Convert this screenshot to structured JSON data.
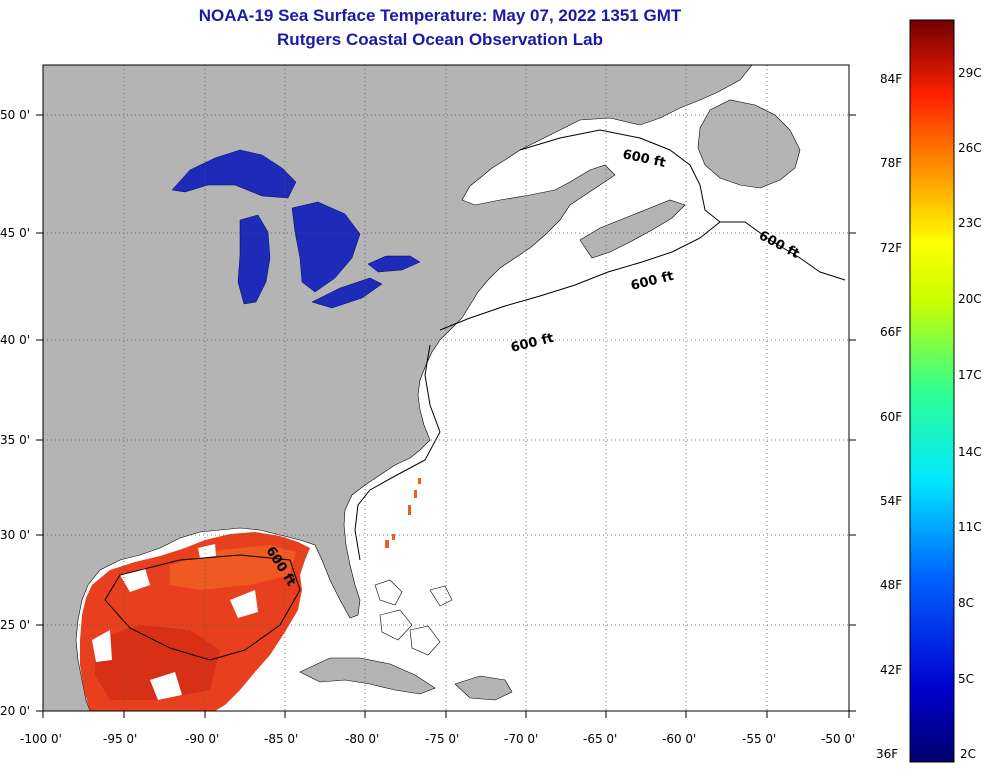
{
  "header": {
    "title": "NOAA-19 Sea Surface Temperature:  May 07, 2022 1351 GMT",
    "subtitle": "Rutgers Coastal Ocean Observation Lab"
  },
  "map": {
    "lon_range": [
      -100,
      -50
    ],
    "lat_range": [
      20,
      52.5
    ],
    "lon_ticks": [
      "-100 0'",
      "-95 0'",
      "-90 0'",
      "-85 0'",
      "-80 0'",
      "-75 0'",
      "-70 0'",
      "-65 0'",
      "-60 0'",
      "-55 0'",
      "-50 0'"
    ],
    "lat_ticks": [
      "50 0'",
      "45 0'",
      "40 0'",
      "35 0'",
      "30 0'",
      "25 0'",
      "20 0'"
    ],
    "contour_labels": [
      "600 ft",
      "600 ft",
      "600 ft",
      "600 ft",
      "600 ft"
    ],
    "colors": {
      "land": "#b4b4b4",
      "lakes": "#1e2ab8",
      "gulf": "#e8401e",
      "no_data": "#ffffff"
    }
  },
  "colorbar": {
    "f_labels": [
      "84F",
      "78F",
      "72F",
      "66F",
      "60F",
      "54F",
      "48F",
      "42F",
      "36F"
    ],
    "c_labels": [
      "29C",
      "26C",
      "23C",
      "20C",
      "17C",
      "14C",
      "11C",
      "8C",
      "5C",
      "2C"
    ]
  }
}
